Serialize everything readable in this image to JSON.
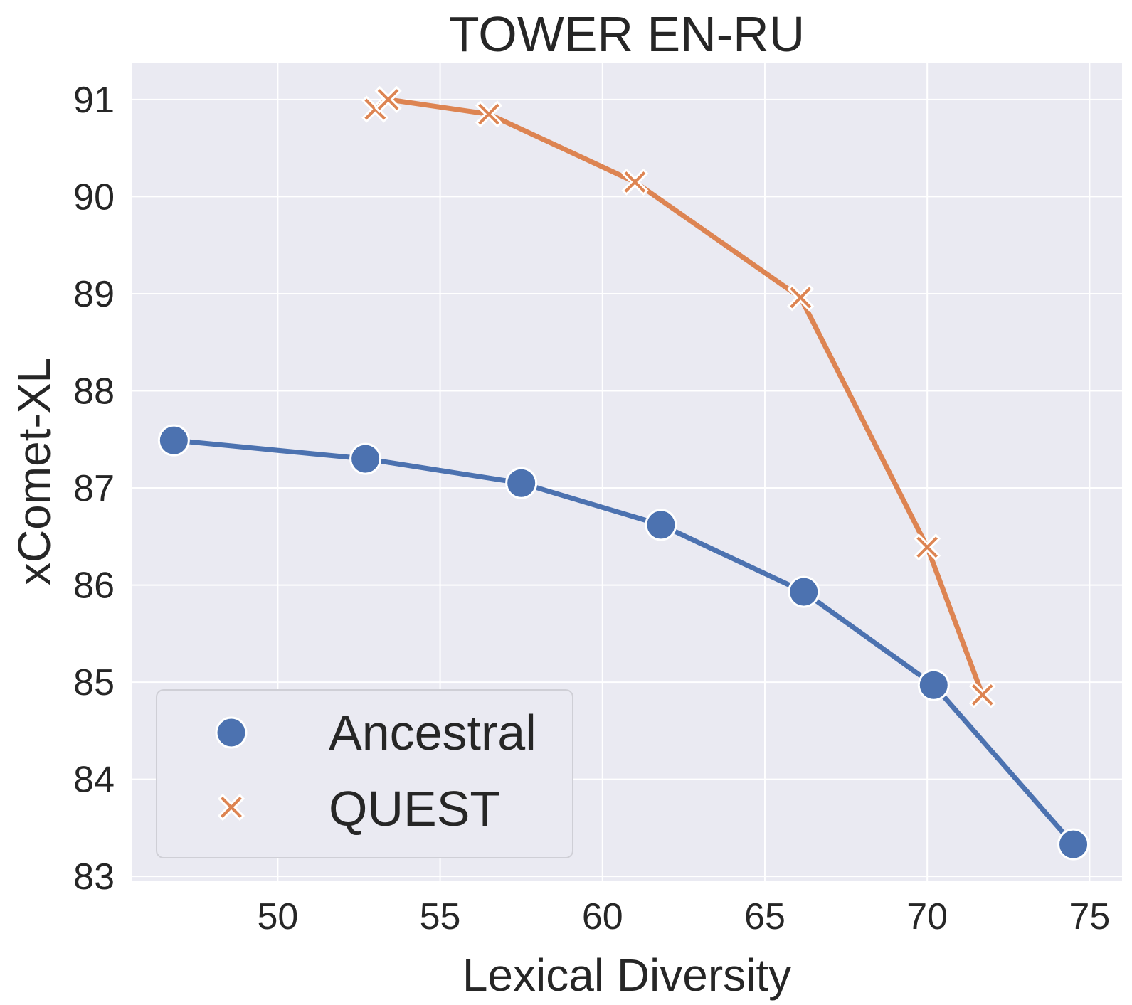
{
  "chart_data": {
    "type": "line",
    "title": "TOWER EN-RU",
    "xlabel": "Lexical Diversity",
    "ylabel": "xComet-XL",
    "xlim": [
      45.5,
      76
    ],
    "ylim": [
      82.95,
      91.38
    ],
    "xticks": [
      50,
      55,
      60,
      65,
      70,
      75
    ],
    "yticks": [
      83,
      84,
      85,
      86,
      87,
      88,
      89,
      90,
      91
    ],
    "grid": true,
    "legend_position": "lower-left",
    "series": [
      {
        "name": "Ancestral",
        "marker": "circle",
        "color": "#4c72b0",
        "x": [
          46.8,
          52.7,
          57.5,
          61.8,
          66.2,
          70.2,
          74.5
        ],
        "y": [
          87.49,
          87.3,
          87.05,
          86.62,
          85.93,
          84.97,
          83.33
        ]
      },
      {
        "name": "QUEST",
        "marker": "x",
        "color": "#dd8452",
        "x": [
          53.0,
          53.4,
          56.5,
          61.0,
          66.1,
          70.0,
          71.7
        ],
        "y": [
          90.9,
          91.0,
          90.85,
          90.15,
          88.96,
          86.39,
          84.87
        ]
      }
    ]
  }
}
